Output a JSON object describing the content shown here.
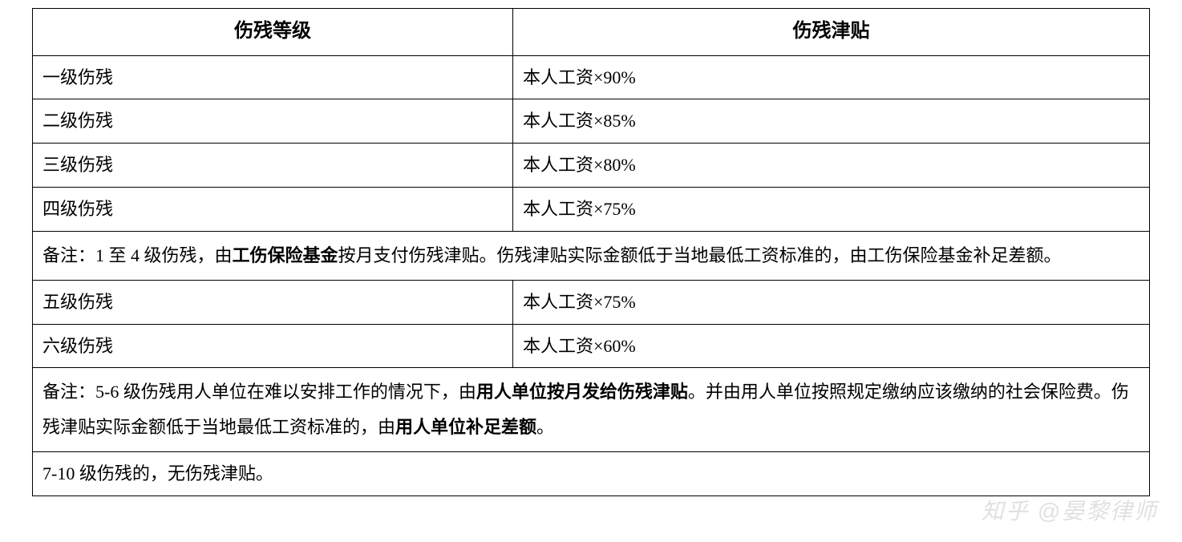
{
  "table": {
    "headers": {
      "level": "伤残等级",
      "allowance": "伤残津贴"
    },
    "rows_group1": [
      {
        "level": "一级伤残",
        "allowance": "本人工资×90%"
      },
      {
        "level": "二级伤残",
        "allowance": "本人工资×85%"
      },
      {
        "level": "三级伤残",
        "allowance": "本人工资×80%"
      },
      {
        "level": "四级伤残",
        "allowance": "本人工资×75%"
      }
    ],
    "note1": {
      "prefix": "备注：1 至 4 级伤残，由",
      "bold1": "工伤保险基金",
      "suffix": "按月支付伤残津贴。伤残津贴实际金额低于当地最低工资标准的，由工伤保险基金补足差额。"
    },
    "rows_group2": [
      {
        "level": "五级伤残",
        "allowance": "本人工资×75%"
      },
      {
        "level": "六级伤残",
        "allowance": "本人工资×60%"
      }
    ],
    "note2": {
      "prefix": "备注：5-6 级伤残用人单位在难以安排工作的情况下，由",
      "bold1": "用人单位按月发给伤残津贴",
      "mid": "。并由用人单位按照规定缴纳应该缴纳的社会保险费。伤残津贴实际金额低于当地最低工资标准的，由",
      "bold2": "用人单位补足差额",
      "suffix": "。"
    },
    "note3": "7-10 级伤残的，无伤残津贴。"
  },
  "watermark": "知乎 @晏黎律师",
  "style": {
    "border_color": "#000000",
    "text_color": "#000000",
    "background_color": "#ffffff",
    "watermark_color": "#d9d9d9",
    "font_family": "SimSun",
    "header_fontsize": 24,
    "body_fontsize": 22
  }
}
